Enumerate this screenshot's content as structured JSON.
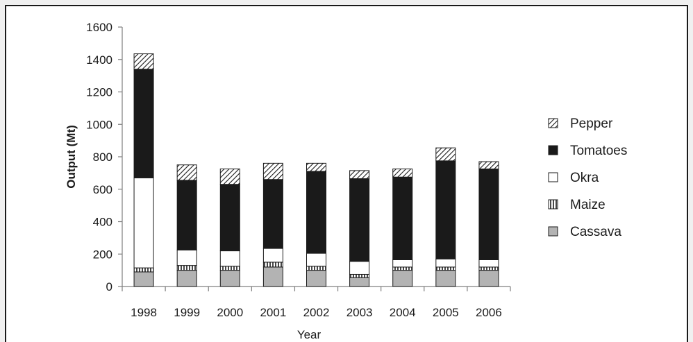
{
  "chart_data": {
    "type": "bar",
    "stacked": true,
    "xlabel": "Year",
    "ylabel": "Output (Mt)",
    "ylim": [
      0,
      1600
    ],
    "yticks": [
      0,
      200,
      400,
      600,
      800,
      1000,
      1200,
      1400,
      1600
    ],
    "categories": [
      "1998",
      "1999",
      "2000",
      "2001",
      "2002",
      "2003",
      "2004",
      "2005",
      "2006"
    ],
    "grid": false,
    "legend_position": "right",
    "series": [
      {
        "name": "Cassava",
        "pattern": "gray-fill",
        "color": "#b3b3b3",
        "values": [
          90,
          100,
          100,
          120,
          100,
          55,
          100,
          100,
          100
        ]
      },
      {
        "name": "Maize",
        "pattern": "vertical-lines",
        "color": "#1a1a1a",
        "values": [
          25,
          30,
          25,
          30,
          25,
          20,
          20,
          20,
          20
        ]
      },
      {
        "name": "Okra",
        "pattern": "white-fill",
        "color": "#ffffff",
        "values": [
          555,
          95,
          95,
          85,
          80,
          80,
          45,
          50,
          45
        ]
      },
      {
        "name": "Tomatoes",
        "pattern": "black-fill",
        "color": "#1a1a1a",
        "values": [
          670,
          430,
          410,
          425,
          505,
          510,
          510,
          605,
          560
        ]
      },
      {
        "name": "Pepper",
        "pattern": "diagonal-lines",
        "color": "#1a1a1a",
        "values": [
          95,
          95,
          95,
          100,
          50,
          50,
          50,
          80,
          45
        ]
      }
    ]
  }
}
